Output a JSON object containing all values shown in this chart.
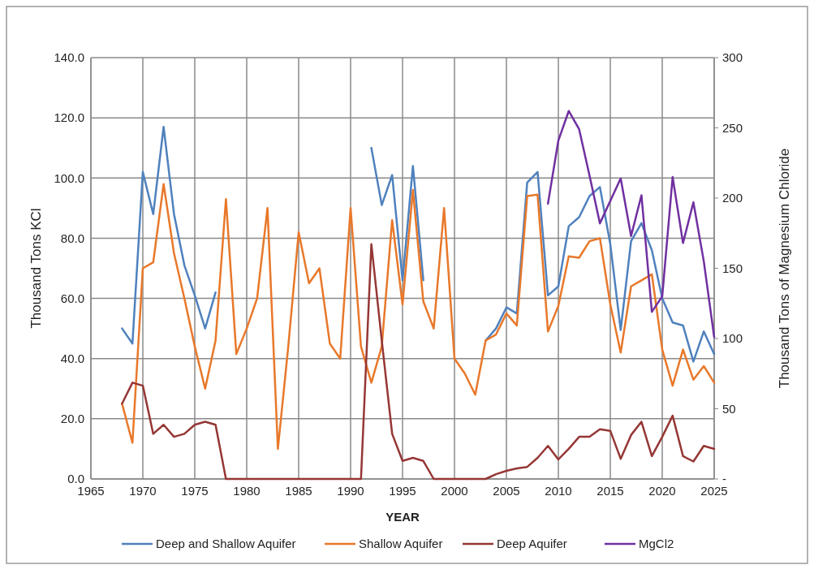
{
  "chart_data": {
    "type": "line",
    "xlabel": "YEAR",
    "ylabel": "Thousand Tons KCl",
    "y2label": "Thousand Tons of Magnesium Chloride",
    "x": [
      1968,
      1969,
      1970,
      1971,
      1972,
      1973,
      1974,
      1975,
      1976,
      1977,
      1978,
      1979,
      1980,
      1981,
      1982,
      1983,
      1984,
      1985,
      1986,
      1987,
      1988,
      1989,
      1990,
      1991,
      1992,
      1993,
      1994,
      1995,
      1996,
      1997,
      1998,
      1999,
      2000,
      2001,
      2002,
      2003,
      2004,
      2005,
      2006,
      2007,
      2008,
      2009,
      2010,
      2011,
      2012,
      2013,
      2014,
      2015,
      2016,
      2017,
      2018,
      2019,
      2020,
      2021,
      2022,
      2023,
      2024,
      2025
    ],
    "series": [
      {
        "name": "Deep and Shallow Aquifer",
        "color": "#4f81bd",
        "values": [
          50,
          45,
          102,
          88,
          117,
          88,
          71,
          61,
          50,
          62,
          null,
          null,
          null,
          null,
          null,
          null,
          null,
          null,
          null,
          null,
          null,
          null,
          null,
          null,
          110,
          91,
          101,
          66,
          104,
          66,
          null,
          null,
          null,
          null,
          null,
          46,
          50,
          57,
          55,
          98.5,
          102,
          61,
          64,
          84,
          87,
          94,
          97,
          78,
          49.5,
          79,
          85,
          76,
          60,
          52,
          51,
          39,
          49,
          41.5
        ]
      },
      {
        "name": "Shallow Aquifer",
        "color": "#e8782a",
        "values": [
          25,
          12,
          70,
          72,
          98,
          75,
          60,
          44,
          30,
          46,
          93,
          41.5,
          50,
          60,
          90,
          10,
          44,
          82,
          65,
          70,
          45,
          40,
          90,
          44,
          32,
          44,
          86,
          58,
          96,
          59,
          50,
          90,
          40,
          35,
          28,
          46,
          48,
          55,
          51,
          94,
          94.5,
          49,
          57.5,
          74,
          73.5,
          79,
          80,
          58,
          42,
          64,
          66,
          68,
          43,
          31,
          43,
          33,
          37.5,
          32
        ]
      },
      {
        "name": "Deep Aquifer",
        "color": "#953735",
        "values": [
          25,
          32,
          31,
          15,
          18,
          14,
          15,
          18,
          19,
          18,
          0,
          0,
          0,
          0,
          0,
          0,
          0,
          0,
          0,
          0,
          0,
          0,
          0,
          0,
          78,
          46,
          15,
          6,
          7,
          6,
          0,
          0,
          0,
          0,
          0,
          0,
          1.6,
          2.7,
          3.5,
          4,
          7,
          11,
          6.5,
          10,
          14,
          14,
          16.5,
          16,
          6.7,
          14.6,
          19,
          7.6,
          14,
          21,
          7.6,
          5.8,
          11,
          10
        ]
      },
      {
        "name": "MgCl2",
        "color": "#7030a0",
        "axis": "y2",
        "x": [
          2009,
          2010,
          2011,
          2012,
          2013,
          2014,
          2015,
          2016,
          2017,
          2018,
          2019,
          2020,
          2021,
          2022,
          2023,
          2024,
          2025
        ],
        "values": [
          196,
          241,
          262,
          249,
          216,
          182,
          198,
          214,
          173,
          202,
          119,
          130,
          215,
          168,
          197,
          155,
          101
        ]
      }
    ],
    "xlim": [
      1965,
      2025
    ],
    "xticks": [
      1965,
      1970,
      1975,
      1980,
      1985,
      1990,
      1995,
      2000,
      2005,
      2010,
      2015,
      2020,
      2025
    ],
    "ylim": [
      0,
      140
    ],
    "yticks": [
      {
        "value": 0,
        "label": "0.0"
      },
      {
        "value": 20,
        "label": "20.0"
      },
      {
        "value": 40,
        "label": "40.0"
      },
      {
        "value": 60,
        "label": "60.0"
      },
      {
        "value": 80,
        "label": "80.0"
      },
      {
        "value": 100,
        "label": "100.0"
      },
      {
        "value": 120,
        "label": "120.0"
      },
      {
        "value": 140,
        "label": "140.0"
      }
    ],
    "y2lim": [
      0,
      300
    ],
    "y2ticks": [
      {
        "value": 0,
        "label": "-"
      },
      50,
      100,
      150,
      200,
      250,
      300
    ],
    "grid": true,
    "legend": "bottom",
    "marker": "none",
    "line_style": "solid"
  }
}
